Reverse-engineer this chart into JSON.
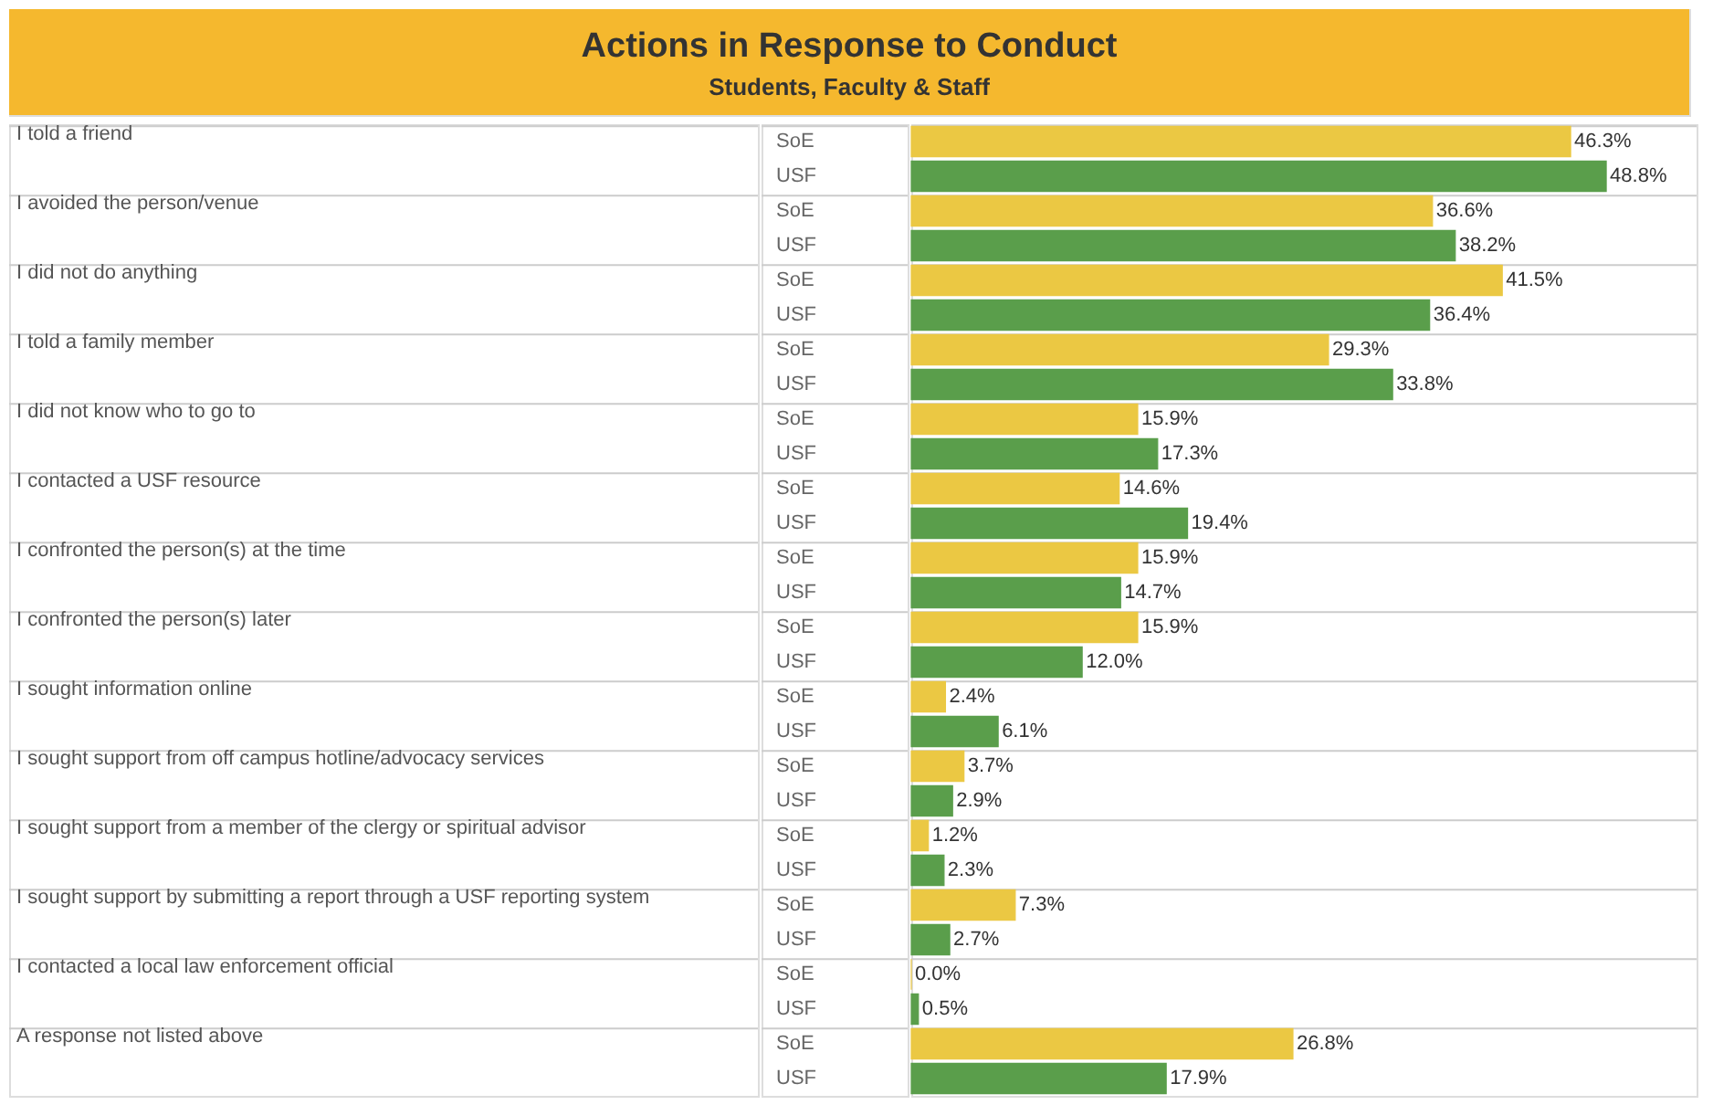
{
  "chart_data": {
    "type": "bar",
    "orientation": "horizontal",
    "title": "Actions in Response to Conduct",
    "subtitle": "Students, Faculty & Staff",
    "categories": [
      "I told a friend",
      "I avoided the person/venue",
      "I did not do anything",
      "I told a family member",
      "I did not know who to go to",
      "I contacted a USF resource",
      "I confronted the person(s) at the time",
      "I confronted the person(s) later",
      "I sought information online",
      "I sought support from off campus hotline/advocacy services",
      "I sought support from a member of the clergy or spiritual advisor",
      "I sought support by submitting a report through a USF reporting system",
      "I contacted a local law enforcement official",
      "A response not listed above"
    ],
    "series": [
      {
        "name": "SoE",
        "color": "#ebc843",
        "values": [
          46.3,
          36.6,
          41.5,
          29.3,
          15.9,
          14.6,
          15.9,
          15.9,
          2.4,
          3.7,
          1.2,
          7.3,
          0.0,
          26.8
        ],
        "value_labels": [
          "46.3%",
          "36.6%",
          "41.5%",
          "29.3%",
          "15.9%",
          "14.6%",
          "15.9%",
          "15.9%",
          "2.4%",
          "3.7%",
          "1.2%",
          "7.3%",
          "0.0%",
          "26.8%"
        ]
      },
      {
        "name": "USF",
        "color": "#5a9e4b",
        "values": [
          48.8,
          38.2,
          36.4,
          33.8,
          17.3,
          19.4,
          14.7,
          12.0,
          6.1,
          2.9,
          2.3,
          2.7,
          0.5,
          17.9
        ],
        "value_labels": [
          "48.8%",
          "38.2%",
          "36.4%",
          "33.8%",
          "17.3%",
          "19.4%",
          "14.7%",
          "12.0%",
          "6.1%",
          "2.9%",
          "2.3%",
          "2.7%",
          "0.5%",
          "17.9%"
        ]
      }
    ]
  }
}
